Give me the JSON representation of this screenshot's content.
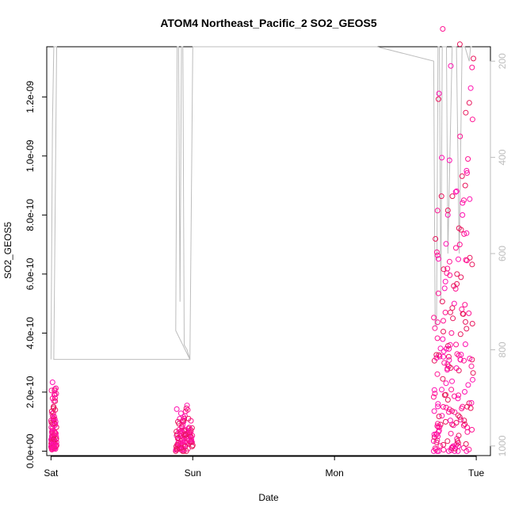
{
  "chart_data": {
    "type": "scatter",
    "title": "ATOM4 Northeast_Pacific_2 SO2_GEOS5",
    "xlabel": "Date",
    "ylabel": "SO2_GEOS5",
    "x_axis": {
      "type": "time",
      "ticks": [
        "Sat",
        "Sun",
        "Mon",
        "Tue"
      ],
      "range_days": [
        -0.03,
        3.1
      ]
    },
    "y_axis": {
      "range": [
        -1.5e-11,
        1.37e-09
      ],
      "ticks": [
        0,
        2e-10,
        4e-10,
        6e-10,
        8e-10,
        1e-09,
        1.2e-09
      ],
      "tick_labels": [
        "0.0e+00",
        "2.0e-10",
        "4.0e-10",
        "6.0e-10",
        "8.0e-10",
        "1.0e-09",
        "1.2e-09"
      ]
    },
    "y2_axis": {
      "reversed": true,
      "range": [
        1020,
        170
      ],
      "ticks": [
        200,
        400,
        600,
        800,
        1000
      ],
      "tick_labels": [
        "200",
        "400",
        "600",
        "800",
        "1000"
      ],
      "color": "#bdbdbd"
    },
    "colors": {
      "points": [
        "#ff1493",
        "#e8175d",
        "#ff10b0"
      ],
      "pressure_line": "#bdbdbd"
    },
    "series": [
      {
        "kind": "points",
        "clusters": [
          {
            "x_range": [
              0.0,
              0.04
            ],
            "y_values": [
              1.5e-11,
              2.5e-11,
              3.2e-11,
              3.8e-11,
              4.5e-11,
              5.5e-11,
              7e-11,
              9e-11,
              1.1e-10,
              1.3e-10,
              1.5e-10,
              1.7e-10,
              1.9e-10,
              2.05e-10,
              2.1e-10,
              1.8e-10,
              1.4e-10,
              1e-10,
              6e-11,
              4e-11,
              3e-11,
              2e-11
            ]
          },
          {
            "x_range": [
              0.88,
              1.0
            ],
            "y_values": [
              0,
              5e-12,
              1e-11,
              2e-11,
              3e-11,
              4e-11,
              5e-11,
              6e-11,
              7e-11,
              8e-11,
              9e-11,
              1e-10,
              1.1e-10,
              1.2e-10,
              1.35e-10,
              1.45e-10,
              1.55e-10,
              1.4e-10,
              1.1e-10,
              8e-11,
              6e-11,
              5e-11,
              4e-11,
              3e-11,
              2e-11
            ]
          },
          {
            "x_range": [
              2.7,
              2.98
            ],
            "y_values": [
              0,
              1e-11,
              3e-11,
              5e-11,
              7e-11,
              9e-11,
              1.2e-10,
              1.5e-10,
              1.9e-10,
              2.3e-10,
              2.8e-10,
              3.2e-10,
              3.6e-10,
              4e-10,
              4.5e-10,
              5e-10,
              5.5e-10,
              6e-10,
              6.5e-10,
              7e-10,
              7.5e-10,
              8e-10,
              8.5e-10,
              9e-10,
              9.5e-10,
              9.9e-10,
              1.18e-09,
              1.23e-09,
              1.3e-09,
              1.33e-09
            ]
          }
        ]
      },
      {
        "kind": "pressure_line",
        "axis": "y2",
        "points": [
          [
            0.0,
            820
          ],
          [
            0.01,
            330
          ],
          [
            0.02,
            170
          ],
          [
            0.03,
            170
          ],
          [
            0.04,
            170
          ],
          [
            0.02,
            820
          ],
          [
            0.98,
            820
          ],
          [
            0.88,
            760
          ],
          [
            0.89,
            170
          ],
          [
            0.9,
            170
          ],
          [
            0.91,
            700
          ],
          [
            0.92,
            170
          ],
          [
            0.93,
            170
          ],
          [
            0.94,
            790
          ],
          [
            0.96,
            800
          ],
          [
            0.98,
            820
          ],
          [
            1.0,
            170
          ],
          [
            1.5,
            170
          ],
          [
            2.3,
            170
          ],
          [
            2.7,
            200
          ],
          [
            2.71,
            750
          ],
          [
            2.72,
            750
          ],
          [
            2.73,
            170
          ],
          [
            2.74,
            170
          ],
          [
            2.75,
            700
          ],
          [
            2.76,
            170
          ],
          [
            2.79,
            170
          ],
          [
            2.8,
            600
          ],
          [
            2.83,
            170
          ],
          [
            2.86,
            170
          ],
          [
            2.88,
            600
          ],
          [
            2.9,
            170
          ],
          [
            2.92,
            170
          ],
          [
            2.95,
            200
          ],
          [
            2.96,
            170
          ],
          [
            2.97,
            170
          ]
        ]
      }
    ]
  }
}
